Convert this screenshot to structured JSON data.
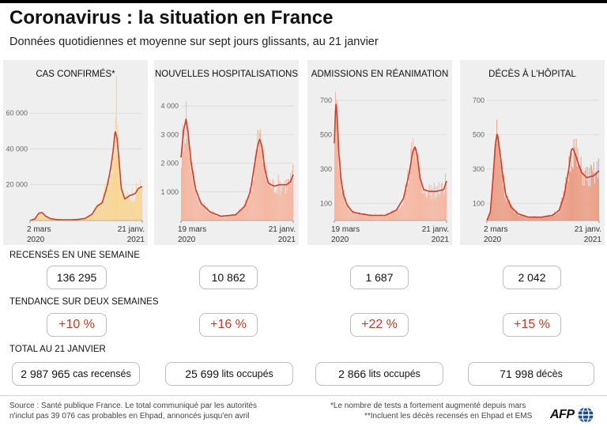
{
  "title": "Coronavirus : la situation en France",
  "subtitle": "Données quotidiennes et moyenne sur sept jours glissants, au 21 janvier",
  "colors": {
    "line": "#c8402e",
    "fill_light": "#f8d592",
    "fill_pink": "#f5b59e",
    "fill_salmon": "#eb9b82",
    "trend_red": "#c23a2b"
  },
  "sections": {
    "weekly": "RECENSÉS EN UNE SEMAINE",
    "trend": "TENDANCE SUR DEUX SEMAINES",
    "total": "TOTAL AU 21 JANVIER"
  },
  "panels": [
    {
      "title": "CAS CONFIRMÉS*",
      "weekly": "136 295",
      "trend": "+10 %",
      "total_value": "2 987 965",
      "total_unit": "cas recensés"
    },
    {
      "title": "NOUVELLES HOSPITALISATIONS",
      "weekly": "10 862",
      "trend": "+16 %",
      "total_value": "25 699",
      "total_unit": "lits occupés"
    },
    {
      "title": "ADMISSIONS EN RÉANIMATION",
      "weekly": "1 687",
      "trend": "+22 %",
      "total_value": "2 866",
      "total_unit": "lits occupés"
    },
    {
      "title": "DÉCÈS À L'HÔPITAL",
      "weekly": "2 042",
      "trend": "+15 %",
      "total_value": "71 998",
      "total_unit": "décès"
    }
  ],
  "footer": {
    "source_line1": "Source : Santé publique France. Le total communiqué par les autorités",
    "source_line2": "n'inclut pas 39 076 cas probables en Ehpad, annoncés jusqu'en avril",
    "note1": "*Le nombre de tests a fortement augmenté depuis mars",
    "note2": "**Incluent les décès recensés en Ehpad et EMS",
    "logo": "AFP"
  },
  "chart_data": [
    {
      "type": "bar",
      "title": "CAS CONFIRMÉS*",
      "fill": "#f8d592",
      "xlim": [
        0,
        326
      ],
      "ylim": [
        0,
        72000
      ],
      "yticks": [
        20000,
        40000,
        60000
      ],
      "ytick_labels": [
        "20 000",
        "40 000",
        "60 000"
      ],
      "xtick_labels": [
        {
          "x": 0,
          "line1": "2 mars",
          "line2": "2020"
        },
        {
          "x": 326,
          "line1": "21 janv.",
          "line2": "2021"
        }
      ],
      "avg_x": [
        0,
        15,
        25,
        35,
        45,
        60,
        80,
        110,
        140,
        160,
        180,
        195,
        210,
        225,
        235,
        242,
        247,
        252,
        258,
        265,
        275,
        290,
        305,
        315,
        326
      ],
      "avg_y": [
        0,
        1000,
        4000,
        4500,
        2500,
        1000,
        500,
        400,
        600,
        1200,
        3500,
        8000,
        10000,
        20000,
        30000,
        40000,
        50000,
        47000,
        35000,
        18000,
        12000,
        14000,
        15000,
        18000,
        19000
      ],
      "spike": {
        "x": 251,
        "y": 87000
      }
    },
    {
      "type": "bar",
      "title": "NOUVELLES HOSPITALISATIONS",
      "fill": "#f5b59e",
      "xlim": [
        0,
        308
      ],
      "ylim": [
        0,
        4500
      ],
      "yticks": [
        1000,
        2000,
        3000,
        4000
      ],
      "ytick_labels": [
        "1 000",
        "2 000",
        "3 000",
        "4 000"
      ],
      "xtick_labels": [
        {
          "x": 0,
          "line1": "19 mars",
          "line2": "2020"
        },
        {
          "x": 308,
          "line1": "21 janv.",
          "line2": "2021"
        }
      ],
      "avg_x": [
        0,
        8,
        14,
        20,
        28,
        40,
        55,
        80,
        110,
        150,
        175,
        190,
        200,
        210,
        216,
        222,
        230,
        240,
        255,
        270,
        290,
        300,
        308
      ],
      "avg_y": [
        2200,
        3200,
        3550,
        3000,
        2000,
        1100,
        600,
        300,
        150,
        200,
        500,
        1000,
        1800,
        2600,
        2850,
        2600,
        1800,
        1300,
        1200,
        1250,
        1250,
        1350,
        1600
      ]
    },
    {
      "type": "bar",
      "title": "ADMISSIONS EN RÉANIMATION",
      "fill": "#f5b59e",
      "xlim": [
        0,
        308
      ],
      "ylim": [
        0,
        750
      ],
      "yticks": [
        100,
        300,
        500,
        700
      ],
      "ytick_labels": [
        "100",
        "300",
        "500",
        "700"
      ],
      "xtick_labels": [
        {
          "x": 0,
          "line1": "19 mars",
          "line2": "2020"
        },
        {
          "x": 308,
          "line1": "21 janv.",
          "line2": "2021"
        }
      ],
      "avg_x": [
        0,
        4,
        8,
        12,
        18,
        25,
        35,
        50,
        70,
        100,
        140,
        170,
        190,
        205,
        215,
        222,
        228,
        235,
        245,
        260,
        280,
        300,
        308
      ],
      "avg_y": [
        450,
        690,
        600,
        400,
        250,
        150,
        90,
        50,
        40,
        30,
        30,
        60,
        130,
        270,
        400,
        430,
        370,
        250,
        180,
        170,
        170,
        180,
        230
      ]
    },
    {
      "type": "bar",
      "title": "DÉCÈS À L'HÔPITAL",
      "fill": "#eb9b82",
      "xlim": [
        0,
        326
      ],
      "ylim": [
        0,
        750
      ],
      "yticks": [
        100,
        300,
        500,
        700
      ],
      "ytick_labels": [
        "100",
        "300",
        "500",
        "700"
      ],
      "xtick_labels": [
        {
          "x": 0,
          "line1": "2 mars",
          "line2": "2020"
        },
        {
          "x": 326,
          "line1": "21 janv.",
          "line2": "2021"
        }
      ],
      "avg_x": [
        0,
        10,
        18,
        25,
        30,
        38,
        45,
        55,
        70,
        90,
        120,
        160,
        190,
        210,
        225,
        238,
        245,
        250,
        258,
        266,
        275,
        290,
        310,
        326
      ],
      "avg_y": [
        0,
        50,
        250,
        450,
        510,
        400,
        280,
        150,
        80,
        40,
        20,
        20,
        30,
        60,
        150,
        300,
        410,
        420,
        380,
        330,
        280,
        250,
        260,
        290
      ]
    }
  ]
}
